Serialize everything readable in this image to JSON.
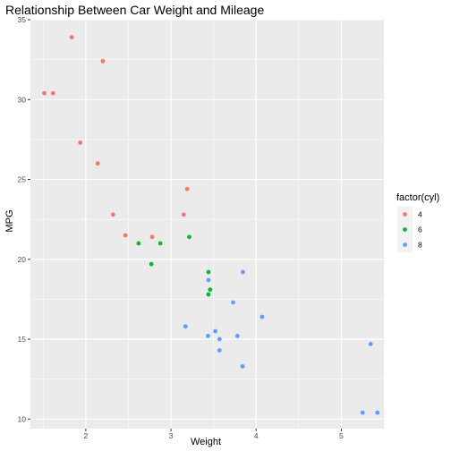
{
  "chart_data": {
    "type": "scatter",
    "title": "Relationship Between Car Weight and Mileage",
    "xlabel": "Weight",
    "ylabel": "MPG",
    "xlim": [
      1.35,
      5.5
    ],
    "ylim": [
      9.4,
      35.0
    ],
    "x_ticks": [
      2,
      3,
      4,
      5
    ],
    "y_ticks": [
      10,
      15,
      20,
      25,
      30,
      35
    ],
    "grid": true,
    "panel_background": "#ebebeb",
    "grid_color": "#ffffff",
    "legend": {
      "title": "factor(cyl)",
      "position": "right",
      "entries": [
        "4",
        "6",
        "8"
      ]
    },
    "series": [
      {
        "name": "4",
        "color": "#f8766d",
        "points": [
          {
            "x": 2.32,
            "y": 22.8
          },
          {
            "x": 3.19,
            "y": 24.4
          },
          {
            "x": 3.15,
            "y": 22.8
          },
          {
            "x": 2.2,
            "y": 32.4
          },
          {
            "x": 1.615,
            "y": 30.4
          },
          {
            "x": 1.835,
            "y": 33.9
          },
          {
            "x": 2.465,
            "y": 21.5
          },
          {
            "x": 1.935,
            "y": 27.3
          },
          {
            "x": 2.14,
            "y": 26.0
          },
          {
            "x": 1.513,
            "y": 30.4
          },
          {
            "x": 2.78,
            "y": 21.4
          }
        ]
      },
      {
        "name": "6",
        "color": "#00ba38",
        "points": [
          {
            "x": 2.62,
            "y": 21.0
          },
          {
            "x": 2.875,
            "y": 21.0
          },
          {
            "x": 3.215,
            "y": 21.4
          },
          {
            "x": 3.46,
            "y": 18.1
          },
          {
            "x": 3.44,
            "y": 19.2
          },
          {
            "x": 3.44,
            "y": 17.8
          },
          {
            "x": 2.77,
            "y": 19.7
          }
        ]
      },
      {
        "name": "8",
        "color": "#619cff",
        "points": [
          {
            "x": 3.44,
            "y": 18.7
          },
          {
            "x": 3.57,
            "y": 14.3
          },
          {
            "x": 4.07,
            "y": 16.4
          },
          {
            "x": 3.73,
            "y": 17.3
          },
          {
            "x": 3.78,
            "y": 15.2
          },
          {
            "x": 5.25,
            "y": 10.4
          },
          {
            "x": 5.424,
            "y": 10.4
          },
          {
            "x": 5.345,
            "y": 14.7
          },
          {
            "x": 3.52,
            "y": 15.5
          },
          {
            "x": 3.435,
            "y": 15.2
          },
          {
            "x": 3.84,
            "y": 13.3
          },
          {
            "x": 3.845,
            "y": 19.2
          },
          {
            "x": 3.17,
            "y": 15.8
          },
          {
            "x": 3.57,
            "y": 15.0
          }
        ]
      }
    ]
  }
}
